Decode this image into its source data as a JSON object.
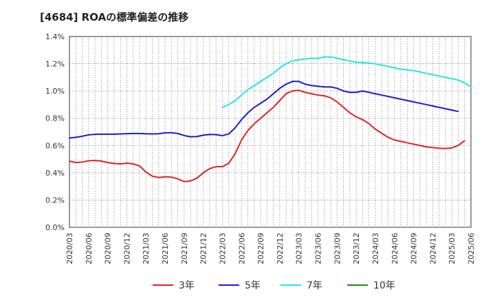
{
  "chart_data": {
    "type": "line",
    "title": "[4684]  ROAの標準偏差の推移",
    "xlabel": "",
    "ylabel": "",
    "ylim": [
      0,
      0.014
    ],
    "y_ticks": [
      0,
      0.002,
      0.004,
      0.006,
      0.008,
      0.01,
      0.012,
      0.014
    ],
    "y_tick_labels": [
      "0.0%",
      "0.2%",
      "0.4%",
      "0.6%",
      "0.8%",
      "1.0%",
      "1.2%",
      "1.4%"
    ],
    "x_tick_labels": [
      "2020/03",
      "2020/06",
      "2020/09",
      "2020/12",
      "2021/03",
      "2021/06",
      "2021/09",
      "2021/12",
      "2022/03",
      "2022/06",
      "2022/09",
      "2022/12",
      "2023/03",
      "2023/06",
      "2023/09",
      "2023/12",
      "2024/03",
      "2024/06",
      "2024/09",
      "2024/12",
      "2025/03",
      "2025/06"
    ],
    "grid": true,
    "legend_position": "bottom",
    "series": [
      {
        "name": "3年",
        "color": "#e02020",
        "start": "2020/03",
        "values": [
          0.00485,
          0.00475,
          0.00478,
          0.00488,
          0.0049,
          0.00485,
          0.00475,
          0.00468,
          0.00465,
          0.0047,
          0.00465,
          0.0045,
          0.00405,
          0.00375,
          0.00365,
          0.0037,
          0.00368,
          0.00355,
          0.00335,
          0.0034,
          0.0036,
          0.004,
          0.0043,
          0.00445,
          0.00445,
          0.0047,
          0.0054,
          0.0064,
          0.0071,
          0.0076,
          0.008,
          0.0084,
          0.0088,
          0.0093,
          0.0098,
          0.01,
          0.01005,
          0.0099,
          0.0098,
          0.0097,
          0.00965,
          0.0095,
          0.0092,
          0.0088,
          0.0084,
          0.0081,
          0.0079,
          0.0076,
          0.0072,
          0.0069,
          0.0066,
          0.0064,
          0.0063,
          0.0062,
          0.0061,
          0.006,
          0.0059,
          0.00585,
          0.0058,
          0.00578,
          0.00582,
          0.006,
          0.00635
        ]
      },
      {
        "name": "5年",
        "color": "#1a1acc",
        "start": "2020/03",
        "values": [
          0.00655,
          0.0066,
          0.00668,
          0.00678,
          0.00682,
          0.00683,
          0.00683,
          0.00683,
          0.00685,
          0.00687,
          0.00688,
          0.00688,
          0.00686,
          0.00685,
          0.00686,
          0.00693,
          0.00694,
          0.00688,
          0.00673,
          0.00664,
          0.00666,
          0.00676,
          0.00681,
          0.0068,
          0.00672,
          0.00685,
          0.0073,
          0.0079,
          0.0084,
          0.0088,
          0.0091,
          0.0094,
          0.0098,
          0.0102,
          0.0105,
          0.0107,
          0.0107,
          0.0105,
          0.0104,
          0.01035,
          0.0103,
          0.0103,
          0.0102,
          0.01,
          0.0099,
          0.0099,
          0.01,
          0.0099,
          0.0098,
          0.0097,
          0.0096,
          0.0095,
          0.0094,
          0.0093,
          0.0092,
          0.0091,
          0.009,
          0.0089,
          0.0088,
          0.0087,
          0.0086,
          0.0085
        ]
      },
      {
        "name": "7年",
        "color": "#22e6e6",
        "start": "2022/03",
        "values": [
          0.0088,
          0.009,
          0.0093,
          0.0097,
          0.0101,
          0.0104,
          0.0107,
          0.011,
          0.0113,
          0.0117,
          0.012,
          0.0122,
          0.0123,
          0.01235,
          0.0124,
          0.0124,
          0.0125,
          0.0125,
          0.0124,
          0.0123,
          0.0122,
          0.0121,
          0.0121,
          0.01205,
          0.012,
          0.0119,
          0.0118,
          0.0117,
          0.0116,
          0.01155,
          0.0115,
          0.0114,
          0.0113,
          0.0112,
          0.0111,
          0.011,
          0.0109,
          0.0108,
          0.0106,
          0.0103
        ]
      },
      {
        "name": "10年",
        "color": "#1a8a1a",
        "start": "",
        "values": []
      }
    ]
  }
}
